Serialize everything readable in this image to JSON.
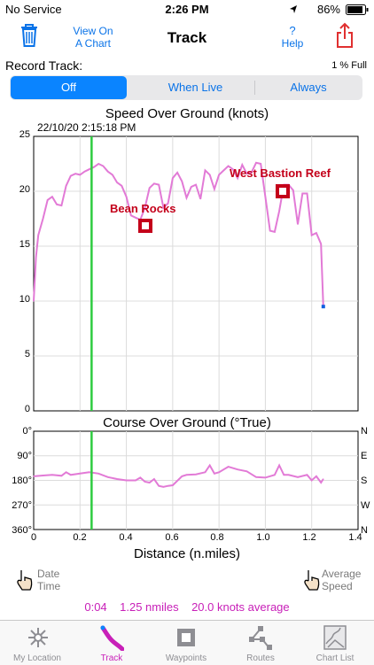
{
  "status_bar": {
    "carrier": "No Service",
    "time": "2:26 PM",
    "battery": "86%",
    "location_icon": "location-arrow-icon",
    "battery_icon": "battery-icon"
  },
  "nav": {
    "title": "Track",
    "view_chart_line1": "View On",
    "view_chart_line2": "A Chart",
    "help_label": "Help",
    "help_symbol": "?",
    "trash_icon": "trash-icon",
    "share_icon": "share-icon"
  },
  "record": {
    "label": "Record Track:",
    "full": "1 % Full",
    "options": [
      "Off",
      "When Live",
      "Always"
    ],
    "selected": "Off"
  },
  "speed_chart": {
    "title": "Speed Over Ground (knots)",
    "timestamp": "22/10/20  2:15:18 PM",
    "y_ticks": [
      "25",
      "20",
      "15",
      "10",
      "5",
      "0"
    ],
    "markers": [
      {
        "label": "Bean Rocks"
      },
      {
        "label": "West Bastion Reef"
      }
    ]
  },
  "course_chart": {
    "title": "Course Over Ground (°True)",
    "y_ticks": [
      "0°",
      "90°",
      "180°",
      "270°",
      "360°"
    ],
    "dir_labels": [
      "N",
      "E",
      "S",
      "W",
      "N"
    ],
    "x_ticks": [
      "0",
      "0.2",
      "0.4",
      "0.6",
      "0.8",
      "1.0",
      "1.2",
      "1.4"
    ],
    "x_label": "Distance (n.miles)"
  },
  "chart_data": [
    {
      "type": "line",
      "title": "Speed Over Ground (knots)",
      "xlabel": "",
      "ylabel": "",
      "xlim": [
        0,
        1.4
      ],
      "ylim": [
        0,
        25
      ],
      "cursor_x": 0.25,
      "x": [
        0,
        0.01,
        0.02,
        0.04,
        0.06,
        0.08,
        0.1,
        0.12,
        0.14,
        0.16,
        0.18,
        0.2,
        0.22,
        0.24,
        0.26,
        0.28,
        0.3,
        0.32,
        0.34,
        0.36,
        0.38,
        0.4,
        0.42,
        0.44,
        0.46,
        0.48,
        0.5,
        0.52,
        0.54,
        0.56,
        0.58,
        0.6,
        0.62,
        0.64,
        0.66,
        0.68,
        0.7,
        0.72,
        0.74,
        0.76,
        0.78,
        0.8,
        0.82,
        0.84,
        0.86,
        0.88,
        0.9,
        0.92,
        0.94,
        0.96,
        0.98,
        1.0,
        1.02,
        1.04,
        1.06,
        1.08,
        1.1,
        1.12,
        1.14,
        1.16,
        1.18,
        1.2,
        1.22,
        1.24,
        1.25
      ],
      "y": [
        10,
        14,
        16,
        17.5,
        19.2,
        19.5,
        18.8,
        18.7,
        20.5,
        21.4,
        21.6,
        21.5,
        21.8,
        22,
        22.2,
        22.5,
        22.3,
        21.8,
        21.5,
        20.8,
        20.5,
        19.5,
        17.8,
        17.6,
        17.4,
        18.5,
        20.3,
        20.7,
        20.6,
        18.5,
        18.9,
        21.2,
        21.7,
        20.9,
        19.4,
        20.4,
        20.6,
        19.3,
        21.9,
        21.5,
        20.2,
        21.5,
        21.9,
        22.3,
        22,
        21.2,
        22.4,
        21.6,
        21.7,
        22.6,
        22.5,
        19.5,
        16.4,
        16.3,
        18.2,
        20.6,
        20.6,
        20.1,
        17,
        19.8,
        19.8,
        16,
        16.2,
        15.2,
        9.5
      ]
    },
    {
      "type": "line",
      "title": "Course Over Ground (°True)",
      "xlabel": "Distance (n.miles)",
      "ylabel": "",
      "xlim": [
        0,
        1.4
      ],
      "ylim": [
        0,
        360
      ],
      "cursor_x": 0.25,
      "x": [
        0,
        0.04,
        0.08,
        0.12,
        0.14,
        0.16,
        0.2,
        0.24,
        0.28,
        0.32,
        0.36,
        0.4,
        0.44,
        0.46,
        0.48,
        0.5,
        0.52,
        0.54,
        0.56,
        0.58,
        0.6,
        0.64,
        0.66,
        0.7,
        0.74,
        0.76,
        0.78,
        0.8,
        0.84,
        0.88,
        0.92,
        0.96,
        1.0,
        1.04,
        1.06,
        1.08,
        1.1,
        1.14,
        1.18,
        1.2,
        1.22,
        1.24,
        1.25
      ],
      "y": [
        165,
        162,
        160,
        163,
        150,
        160,
        155,
        150,
        155,
        168,
        175,
        180,
        180,
        170,
        185,
        188,
        175,
        200,
        204,
        200,
        198,
        165,
        160,
        158,
        150,
        125,
        155,
        150,
        130,
        140,
        147,
        168,
        170,
        160,
        125,
        160,
        160,
        168,
        160,
        180,
        165,
        188,
        175
      ]
    }
  ],
  "bottom": {
    "date_time_line1": "Date",
    "date_time_line2": "Time",
    "avg_speed_line1": "Average",
    "avg_speed_line2": "Speed",
    "hand_icon": "hand-point-icon"
  },
  "summary": {
    "duration": "0:04",
    "distance": "1.25 nmiles",
    "speed": "20.0 knots average"
  },
  "tabs": [
    {
      "label": "My Location",
      "icon": "compass-icon"
    },
    {
      "label": "Track",
      "icon": "track-icon"
    },
    {
      "label": "Waypoints",
      "icon": "waypoint-icon"
    },
    {
      "label": "Routes",
      "icon": "route-icon"
    },
    {
      "label": "Chart List",
      "icon": "chart-list-icon"
    }
  ],
  "colors": {
    "accent": "#0a84ff",
    "track": "#e27ad6",
    "cursor": "#2ecc40",
    "marker": "#c4001a",
    "summary": "#c820b8"
  }
}
